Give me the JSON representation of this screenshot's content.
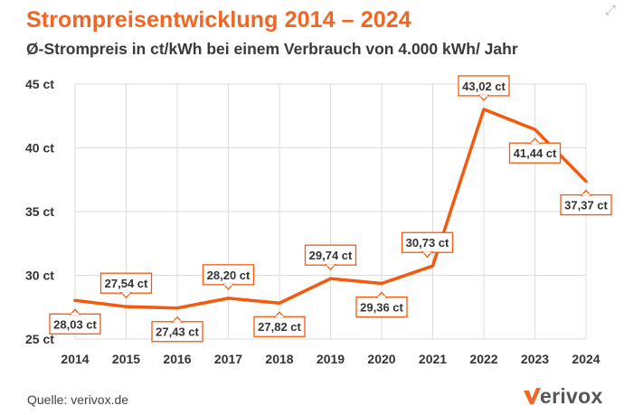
{
  "header": {
    "title": "Strompreisentwicklung 2014 – 2024",
    "subtitle": "Ø-Strompreis in ct/kWh bei einem Verbrauch von 4.000 kWh/ Jahr",
    "expand_icon": "expand-icon"
  },
  "footer": {
    "source": "Quelle: verivox.de",
    "logo_text": "erivox",
    "logo_icon": "verivox-v-icon"
  },
  "chart_data": {
    "type": "line",
    "title": "Strompreisentwicklung 2014 – 2024",
    "subtitle": "Ø-Strompreis in ct/kWh bei einem Verbrauch von 4.000 kWh/ Jahr",
    "categories": [
      "2014",
      "2015",
      "2016",
      "2017",
      "2018",
      "2019",
      "2020",
      "2021",
      "2022",
      "2023",
      "2024"
    ],
    "series": [
      {
        "values": [
          28.03,
          27.54,
          27.43,
          28.2,
          27.82,
          29.74,
          29.36,
          30.73,
          43.02,
          41.44,
          37.37
        ],
        "data_labels": [
          "28,03 ct",
          "27,54 ct",
          "27,43 ct",
          "28,20 ct",
          "27,82 ct",
          "29,74 ct",
          "29,36 ct",
          "30,73 ct",
          "43,02 ct",
          "41,44 ct",
          "37,37 ct"
        ],
        "color": "#f35a0e"
      }
    ],
    "ylim": [
      25,
      45
    ],
    "yticks": [
      25,
      30,
      35,
      40,
      45
    ],
    "ytick_labels": [
      "25 ct",
      "30 ct",
      "35 ct",
      "40 ct",
      "45 ct"
    ],
    "xlabel": "",
    "ylabel": "",
    "grid": true,
    "colors": {
      "line": "#f35a0e",
      "grid": "#dcdcdc",
      "label_border": "#f35a0e",
      "title": "#f26522"
    }
  }
}
